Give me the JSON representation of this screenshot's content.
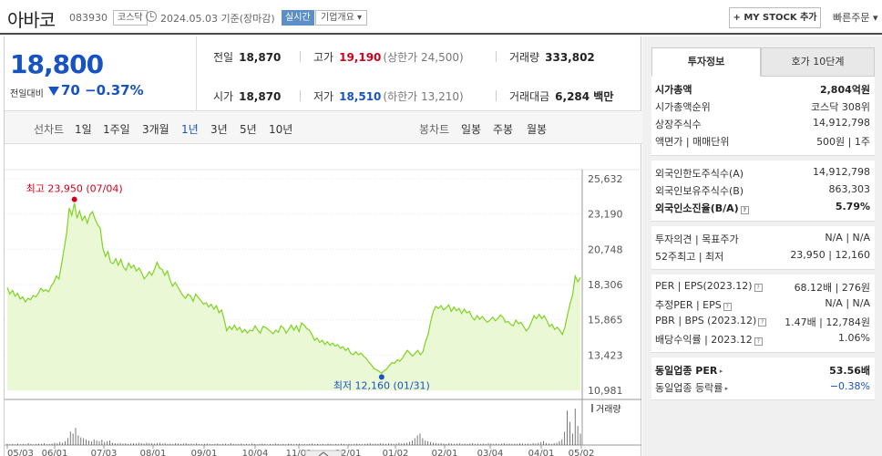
{
  "header": {
    "name": "아바코",
    "code": "083930",
    "market": "코스닥",
    "date": "2024.05.03  기준(장마감)",
    "live": "실시간",
    "corp_info": "기업개요 ▾",
    "mystock": "+ MY STOCK 추가",
    "quick_order": "빠른주문 ▾"
  },
  "price": {
    "current": "18,800",
    "compare_label": "전일대비",
    "change": "70",
    "change_pct": "−0.37%"
  },
  "stats": {
    "prev_label": "전일",
    "prev": "18,870",
    "high_label": "고가",
    "high": "19,190",
    "upper": "(상한가 24,500)",
    "volume_label": "거래량",
    "volume": "333,802",
    "open_label": "시가",
    "open": "18,870",
    "low_label": "저가",
    "low": "18,510",
    "lower": "(하한가 13,210)",
    "amount_label": "거래대금",
    "amount": "6,284 백만"
  },
  "periods": {
    "line_label": "선차트",
    "line": [
      "1일",
      "1주일",
      "3개월",
      "1년",
      "3년",
      "5년",
      "10년"
    ],
    "active": "1년",
    "candle_label": "봉차트",
    "candle": [
      "일봉",
      "주봉",
      "월봉"
    ]
  },
  "chart_data": {
    "type": "area",
    "y_ticks": [
      "25,632",
      "23,190",
      "20,748",
      "18,306",
      "15,865",
      "13,423",
      "10,981"
    ],
    "ylim": [
      10981,
      25632
    ],
    "x_ticks": [
      "05/03",
      "06/01",
      "07/03",
      "08/01",
      "09/01",
      "10/04",
      "11/01",
      "12/01",
      "01/02",
      "02/01",
      "03/04",
      "04/01",
      "05/02"
    ],
    "high_annotation": "최고 23,950 (07/04)",
    "low_annotation": "최저 12,160 (01/31)",
    "volume_label": "거래량",
    "series": [
      {
        "values": [
          18100,
          17650,
          17900,
          17500,
          17700,
          17300,
          17450,
          17100,
          17350,
          17250,
          17550,
          17450,
          17700,
          18050,
          17850,
          17950,
          17800,
          18200,
          18450,
          18900,
          18700,
          19700,
          20750,
          21900,
          23600,
          23100,
          23950,
          22900,
          23400,
          22750,
          23050,
          22550,
          23150,
          23350,
          22850,
          22450,
          22200,
          20850,
          20250,
          20600,
          19850,
          19750,
          20100,
          19650,
          20050,
          19500,
          19300,
          19800,
          19450,
          19650,
          19250,
          19450,
          19150,
          18700,
          18900,
          19200,
          18950,
          19350,
          19850,
          19450,
          19350,
          18950,
          19250,
          18650,
          18200,
          18450,
          18150,
          17850,
          17550,
          17350,
          17650,
          17500,
          17150,
          17650,
          17400,
          17200,
          16950,
          17050,
          16750,
          16950,
          16600,
          16850,
          16350,
          16550,
          15900,
          15100,
          15400,
          15200,
          15500,
          15150,
          15350,
          15000,
          15200,
          14950,
          15150,
          15100,
          15450,
          15150,
          14950,
          15400,
          15350,
          15200,
          15050,
          14900,
          15150,
          15000,
          15450,
          15300,
          14950,
          15200,
          15500,
          15150,
          15450,
          15050,
          15650,
          15500,
          15250,
          15150,
          14850,
          14450,
          14600,
          14300,
          14450,
          14150,
          14350,
          14100,
          14250,
          14050,
          14150,
          13900,
          14000,
          13750,
          13900,
          13550,
          13450,
          13650,
          13450,
          13550,
          13350,
          13200,
          12950,
          12750,
          12500,
          12400,
          12300,
          12160,
          12350,
          12450,
          12700,
          12900,
          12850,
          13100,
          13000,
          13200,
          13500,
          13750,
          13550,
          13350,
          13550,
          13750,
          13450,
          13650,
          14350,
          14850,
          15750,
          16450,
          16800,
          16650,
          16850,
          16550,
          16700,
          16900,
          16450,
          16750,
          16500,
          16650,
          16300,
          16600,
          16350,
          16450,
          16050,
          15850,
          16150,
          15900,
          16100,
          15850,
          15700,
          15850,
          16050,
          15800,
          15950,
          16200,
          16050,
          15700,
          15750,
          15550,
          15450,
          15850,
          15600,
          15700,
          15400,
          15100,
          15300,
          15700,
          16150,
          15950,
          16250,
          15950,
          16150,
          15800,
          15400,
          15550,
          15200,
          15350,
          15150,
          14850,
          15350,
          16200,
          17000,
          17600,
          18900,
          18500,
          18800
        ]
      }
    ],
    "volume": [
      0.03,
      0.02,
      0.03,
      0.02,
      0.04,
      0.02,
      0.03,
      0.02,
      0.05,
      0.03,
      0.02,
      0.03,
      0.04,
      0.03,
      0.05,
      0.02,
      0.03,
      0.04,
      0.06,
      0.05,
      0.08,
      0.06,
      0.1,
      0.18,
      0.35,
      0.3,
      0.45,
      0.25,
      0.2,
      0.18,
      0.15,
      0.12,
      0.1,
      0.15,
      0.12,
      0.1,
      0.14,
      0.08,
      0.1,
      0.12,
      0.06,
      0.05,
      0.04,
      0.05,
      0.04,
      0.05,
      0.03,
      0.04,
      0.05,
      0.04,
      0.06,
      0.05,
      0.04,
      0.06,
      0.05,
      0.05,
      0.04,
      0.05,
      0.06,
      0.04,
      0.05,
      0.03,
      0.04,
      0.03,
      0.05,
      0.04,
      0.03,
      0.04,
      0.05,
      0.03,
      0.04,
      0.03,
      0.05,
      0.03,
      0.02,
      0.03,
      0.04,
      0.03,
      0.02,
      0.03,
      0.04,
      0.02,
      0.03,
      0.04,
      0.02,
      0.05,
      0.03,
      0.02,
      0.03,
      0.04,
      0.02,
      0.03,
      0.02,
      0.04,
      0.03,
      0.02,
      0.03,
      0.04,
      0.03,
      0.02,
      0.03,
      0.02,
      0.04,
      0.03,
      0.02,
      0.03,
      0.02,
      0.04,
      0.03,
      0.02,
      0.03,
      0.04,
      0.02,
      0.03,
      0.02,
      0.03,
      0.04,
      0.02,
      0.03,
      0.02,
      0.03,
      0.02,
      0.04,
      0.03,
      0.02,
      0.03,
      0.02,
      0.04,
      0.03,
      0.02,
      0.03,
      0.02,
      0.03,
      0.04,
      0.03,
      0.02,
      0.03,
      0.04,
      0.05,
      0.03,
      0.04,
      0.03,
      0.05,
      0.04,
      0.03,
      0.05,
      0.04,
      0.03,
      0.04,
      0.06,
      0.04,
      0.05,
      0.06,
      0.08,
      0.12,
      0.18,
      0.25,
      0.3,
      0.18,
      0.12,
      0.1,
      0.08,
      0.06,
      0.05,
      0.04,
      0.05,
      0.04,
      0.03,
      0.05,
      0.04,
      0.03,
      0.04,
      0.05,
      0.03,
      0.04,
      0.03,
      0.04,
      0.05,
      0.03,
      0.04,
      0.03,
      0.04,
      0.03,
      0.05,
      0.04,
      0.03,
      0.04,
      0.03,
      0.04,
      0.05,
      0.03,
      0.04,
      0.03,
      0.04,
      0.03,
      0.05,
      0.04,
      0.03,
      0.04,
      0.03,
      0.05,
      0.04,
      0.06,
      0.08,
      0.1,
      0.05,
      0.04,
      0.03,
      0.05,
      0.06,
      0.1,
      0.15,
      0.35,
      0.9,
      0.6,
      0.3,
      0.95,
      0.5,
      0.3
    ]
  },
  "panel": {
    "tab_active": "투자정보",
    "tab_inactive": "호가 10단계",
    "g1": [
      {
        "k": "시가총액",
        "v": "2,804억원",
        "kb": true,
        "vb": true
      },
      {
        "k": "시가총액순위",
        "v": "코스닥 308위"
      },
      {
        "k": "상장주식수",
        "v": "14,912,798"
      },
      {
        "k": "액면가 | 매매단위",
        "v": "500원 | 1주"
      }
    ],
    "g2": [
      {
        "k": "외국인한도주식수(A)",
        "v": "14,912,798"
      },
      {
        "k": "외국인보유주식수(B)",
        "v": "863,303"
      },
      {
        "k": "외국인소진율(B/A)",
        "v": "5.79%",
        "kb": true,
        "vb": true,
        "q": true
      }
    ],
    "g3": [
      {
        "k": "투자의견 | 목표주가",
        "v": "N/A | N/A"
      },
      {
        "k": "52주최고 | 최저",
        "v": "23,950 | 12,160"
      }
    ],
    "g4": [
      {
        "k": "PER | EPS(2023.12)",
        "v": "68.12배 | 276원",
        "q": true
      },
      {
        "k": "추정PER | EPS",
        "v": "N/A | N/A",
        "q": true
      },
      {
        "k": "PBR | BPS (2023.12)",
        "v": "1.47배 | 12,784원",
        "q": true
      },
      {
        "k": "배당수익률 | 2023.12",
        "v": "1.06%",
        "q": true
      }
    ],
    "g5": [
      {
        "k": "동일업종 PER",
        "v": "53.56배",
        "kb": true,
        "vb": true,
        "arr": true
      },
      {
        "k": "동일업종 등락률",
        "v": "−0.38%",
        "blue": true,
        "arr": true
      }
    ]
  },
  "colors": {
    "up": "#d0021b",
    "down": "#1753c2",
    "line": "#7ed321",
    "fill": "#eaf8d6"
  }
}
